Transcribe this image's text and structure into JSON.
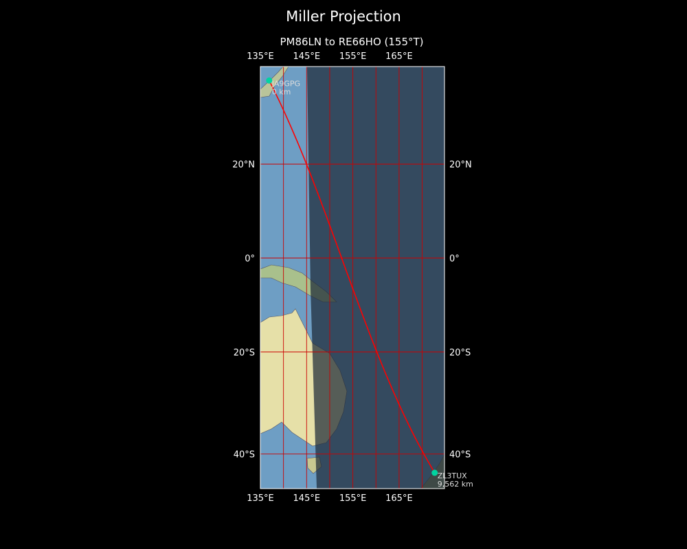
{
  "title": "Miller Projection",
  "subtitle": "PM86LN to RE66HO (155°T)",
  "map": {
    "projection": "Miller",
    "extent": {
      "lon": [
        135,
        174.8
      ],
      "lat": [
        -46.2,
        39.3
      ]
    },
    "lon_ticks": [
      {
        "value": 135,
        "label": "135°E"
      },
      {
        "value": 145,
        "label": "145°E"
      },
      {
        "value": 155,
        "label": "155°E"
      },
      {
        "value": 165,
        "label": "165°E"
      }
    ],
    "lat_ticks": [
      {
        "value": 20,
        "label": "20°N"
      },
      {
        "value": 0,
        "label": "0°"
      },
      {
        "value": -20,
        "label": "20°S"
      },
      {
        "value": -40,
        "label": "40°S"
      }
    ],
    "gridline_color": "#cc0000",
    "path_color": "#ff0000",
    "marker_color": "#00d4a0",
    "night_shade": true
  },
  "stations": [
    {
      "call": "JA9GPG",
      "distance": "0 km",
      "lat": 36.6,
      "lon": 136.9
    },
    {
      "call": "ZL3TUX",
      "distance": "9,562 km",
      "lat": -43.4,
      "lon": 172.7
    }
  ]
}
